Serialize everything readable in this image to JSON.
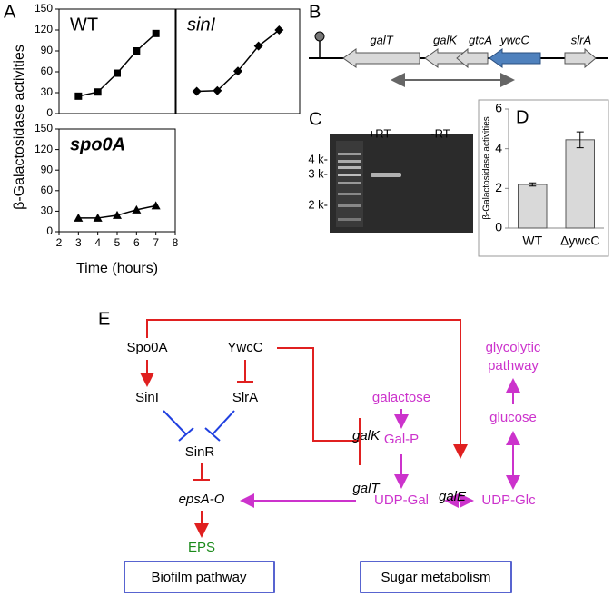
{
  "panels": [
    "A",
    "B",
    "C",
    "D",
    "E"
  ],
  "chart_data": [
    {
      "type": "line",
      "title": "WT",
      "ylabel": "β-Galactosidase activities",
      "marker": "square",
      "x": [
        3,
        4,
        5,
        6,
        7
      ],
      "values": [
        25,
        31,
        58,
        90,
        115
      ],
      "xlim": [
        2,
        8
      ],
      "ylim": [
        0,
        150
      ],
      "yticks": [
        0,
        30,
        60,
        90,
        120,
        150
      ]
    },
    {
      "type": "line",
      "title": "sinI",
      "marker": "diamond",
      "x": [
        3,
        4,
        5,
        6,
        7
      ],
      "values": [
        32,
        33,
        61,
        97,
        120
      ],
      "xlim": [
        2,
        8
      ],
      "ylim": [
        0,
        150
      ]
    },
    {
      "type": "line",
      "title": "spo0A",
      "xlabel": "Time (hours)",
      "marker": "triangle",
      "x": [
        3,
        4,
        5,
        6,
        7
      ],
      "values": [
        20,
        20,
        24,
        32,
        38
      ],
      "xlim": [
        2,
        8
      ],
      "xticks": [
        2,
        3,
        4,
        5,
        6,
        7,
        8
      ],
      "ylim": [
        0,
        150
      ],
      "yticks": [
        0,
        30,
        60,
        90,
        120,
        150
      ]
    },
    {
      "type": "bar",
      "ylabel": "β-Galactosidase activities",
      "categories": [
        "WT",
        "ΔywcC"
      ],
      "values": [
        2.2,
        4.45
      ],
      "errors": [
        0.08,
        0.4
      ],
      "color": "#d9d9d9",
      "ylim": [
        0,
        6
      ],
      "yticks": [
        0,
        2,
        4,
        6
      ]
    }
  ],
  "genes": [
    "galT",
    "galK",
    "gtcA",
    "ywcC",
    "slrA"
  ],
  "gel": {
    "lanes": [
      "+RT",
      "-RT"
    ],
    "markers": [
      "4 k-",
      "3 k-",
      "2 k-"
    ]
  },
  "pathway": {
    "nodes": [
      "Spo0A",
      "YwcC",
      "SinI",
      "SlrA",
      "SinR",
      "epsA-O",
      "EPS",
      "galactose",
      "glycolytic",
      "pathway",
      "galK",
      "Gal-P",
      "glucose",
      "galT",
      "galE",
      "UDP-Gal",
      "UDP-Glc"
    ],
    "boxes": [
      "Biofilm pathway",
      "Sugar metabolism"
    ]
  }
}
